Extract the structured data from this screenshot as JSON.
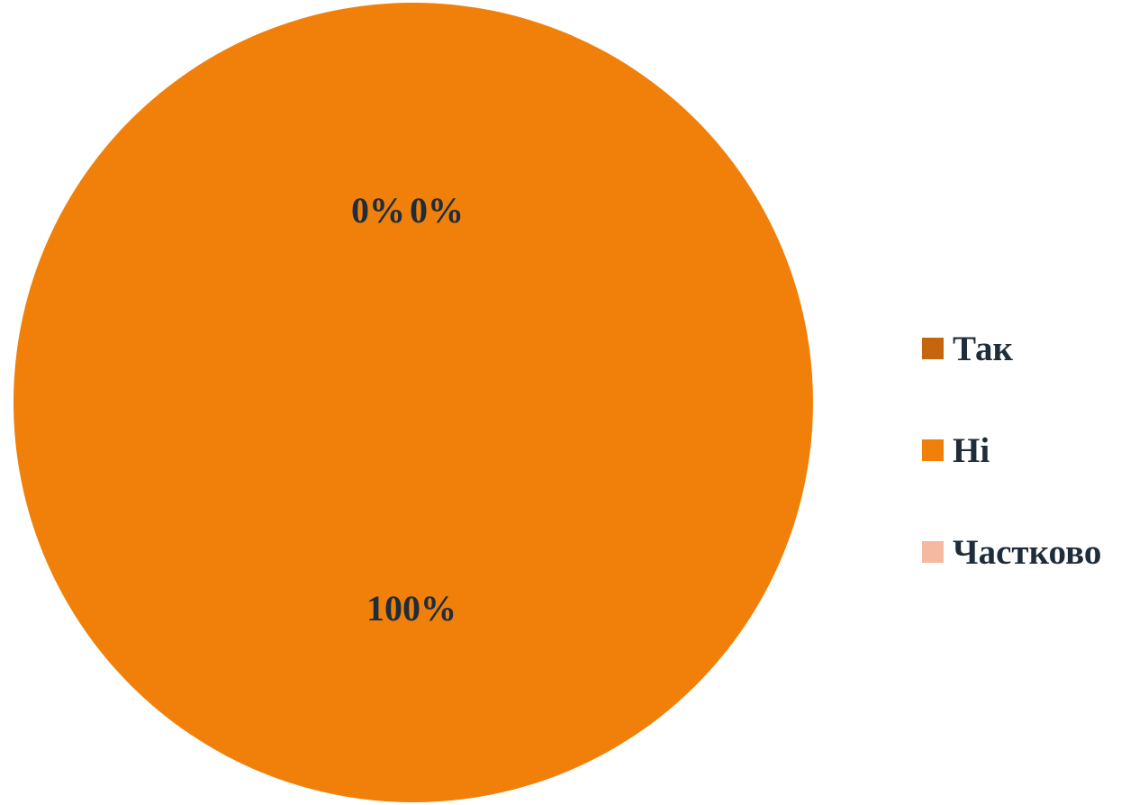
{
  "chart_data": {
    "type": "pie",
    "title": "",
    "categories": [
      "Так",
      "Ні",
      "Частково"
    ],
    "values": [
      0,
      100,
      0
    ],
    "data_labels": [
      "0%",
      "100%",
      "0%"
    ],
    "colors": [
      "#c5660f",
      "#f0800a",
      "#f4b9a0"
    ],
    "legend_position": "right",
    "label_color": "#1f2d3a"
  }
}
